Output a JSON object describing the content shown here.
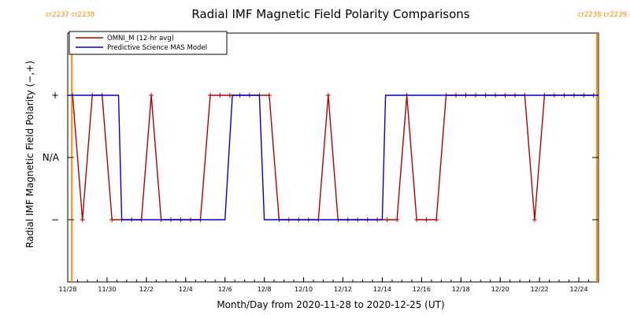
{
  "chart_data": {
    "type": "line",
    "title": "Radial IMF Magnetic Field Polarity Comparisons",
    "xlabel": "Month/Day from 2020-11-28 to 2020-12-25 (UT)",
    "ylabel": "Radial IMF Magnetic Field Polarity (−,+)",
    "xlim": [
      "2020-11-28",
      "2020-12-25"
    ],
    "x_ticks": [
      "11/28",
      "11/30",
      "12/2",
      "12/4",
      "12/6",
      "12/8",
      "12/10",
      "12/12",
      "12/14",
      "12/16",
      "12/18",
      "12/20",
      "12/22",
      "12/24"
    ],
    "x_tick_dates": [
      "2020-11-28",
      "2020-11-30",
      "2020-12-02",
      "2020-12-04",
      "2020-12-06",
      "2020-12-08",
      "2020-12-10",
      "2020-12-12",
      "2020-12-14",
      "2020-12-16",
      "2020-12-18",
      "2020-12-20",
      "2020-12-22",
      "2020-12-24"
    ],
    "y_categories": [
      "−",
      "N/A",
      "+"
    ],
    "y_tick_labels": [
      "+",
      "N/A",
      "−"
    ],
    "ylim": [
      -2,
      2
    ],
    "grid": false,
    "legend_position": "top-left",
    "carrington_markers": [
      {
        "date": "2020-11-28 05:00",
        "label": "cr2237 cr2238"
      },
      {
        "date": "2020-12-24 22:00",
        "label": "cr2238 cr2239"
      }
    ],
    "series": [
      {
        "name": "OMNI_M (12-hr avg)",
        "color": "#b00000",
        "markers": true,
        "points": [
          [
            "2020-11-28 06:00",
            1
          ],
          [
            "2020-11-28 18:00",
            -1
          ],
          [
            "2020-11-29 06:00",
            1
          ],
          [
            "2020-11-29 18:00",
            1
          ],
          [
            "2020-11-30 06:00",
            -1
          ],
          [
            "2020-11-30 18:00",
            -1
          ],
          [
            "2020-12-01 06:00",
            -1
          ],
          [
            "2020-12-01 18:00",
            -1
          ],
          [
            "2020-12-02 06:00",
            1
          ],
          [
            "2020-12-02 18:00",
            -1
          ],
          [
            "2020-12-03 06:00",
            -1
          ],
          [
            "2020-12-03 18:00",
            -1
          ],
          [
            "2020-12-04 06:00",
            -1
          ],
          [
            "2020-12-04 18:00",
            -1
          ],
          [
            "2020-12-05 06:00",
            1
          ],
          [
            "2020-12-05 18:00",
            1
          ],
          [
            "2020-12-06 06:00",
            1
          ],
          [
            "2020-12-06 18:00",
            1
          ],
          [
            "2020-12-07 06:00",
            1
          ],
          [
            "2020-12-07 18:00",
            1
          ],
          [
            "2020-12-08 06:00",
            1
          ],
          [
            "2020-12-08 18:00",
            -1
          ],
          [
            "2020-12-09 06:00",
            -1
          ],
          [
            "2020-12-09 18:00",
            -1
          ],
          [
            "2020-12-10 06:00",
            -1
          ],
          [
            "2020-12-10 18:00",
            -1
          ],
          [
            "2020-12-11 06:00",
            1
          ],
          [
            "2020-12-11 18:00",
            -1
          ],
          [
            "2020-12-12 06:00",
            -1
          ],
          [
            "2020-12-12 18:00",
            -1
          ],
          [
            "2020-12-13 06:00",
            -1
          ],
          [
            "2020-12-13 18:00",
            -1
          ],
          [
            "2020-12-14 06:00",
            -1
          ],
          [
            "2020-12-14 18:00",
            -1
          ],
          [
            "2020-12-15 06:00",
            1
          ],
          [
            "2020-12-15 18:00",
            -1
          ],
          [
            "2020-12-16 06:00",
            -1
          ],
          [
            "2020-12-16 18:00",
            -1
          ],
          [
            "2020-12-17 06:00",
            1
          ],
          [
            "2020-12-17 18:00",
            1
          ],
          [
            "2020-12-18 06:00",
            1
          ],
          [
            "2020-12-18 18:00",
            1
          ],
          [
            "2020-12-19 06:00",
            1
          ],
          [
            "2020-12-19 18:00",
            1
          ],
          [
            "2020-12-20 06:00",
            1
          ],
          [
            "2020-12-20 18:00",
            1
          ],
          [
            "2020-12-21 06:00",
            1
          ],
          [
            "2020-12-21 18:00",
            -1
          ],
          [
            "2020-12-22 06:00",
            1
          ],
          [
            "2020-12-22 18:00",
            1
          ],
          [
            "2020-12-23 06:00",
            1
          ],
          [
            "2020-12-23 18:00",
            1
          ],
          [
            "2020-12-24 06:00",
            1
          ],
          [
            "2020-12-24 18:00",
            1
          ]
        ]
      },
      {
        "name": "Predictive Science MAS Model",
        "color": "#0000cc",
        "markers": false,
        "points": [
          [
            "2020-11-28 00:00",
            1
          ],
          [
            "2020-11-30 14:00",
            1
          ],
          [
            "2020-11-30 18:00",
            -1
          ],
          [
            "2020-12-06 00:00",
            -1
          ],
          [
            "2020-12-06 09:00",
            1
          ],
          [
            "2020-12-07 18:00",
            1
          ],
          [
            "2020-12-08 00:00",
            -1
          ],
          [
            "2020-12-14 00:00",
            -1
          ],
          [
            "2020-12-14 04:00",
            1
          ],
          [
            "2020-12-25 00:00",
            1
          ]
        ]
      }
    ]
  }
}
